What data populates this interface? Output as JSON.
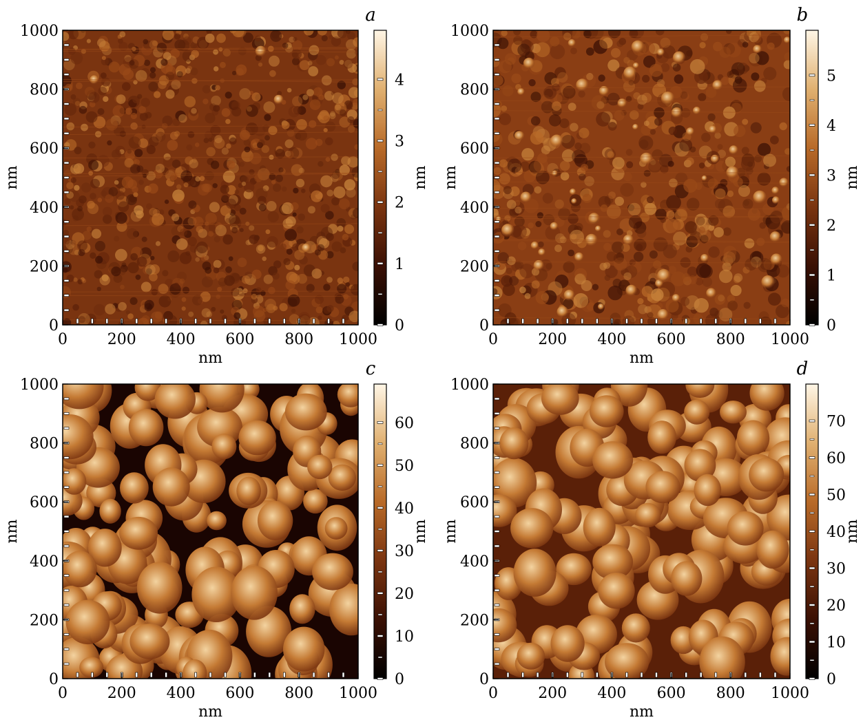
{
  "chart_data": [
    {
      "type": "heatmap",
      "panel_label": "a",
      "xlabel": "nm",
      "ylabel": "nm",
      "xlim": [
        0,
        1000
      ],
      "ylim": [
        0,
        1000
      ],
      "x_ticks": [
        "0",
        "200",
        "400",
        "600",
        "800",
        "1000"
      ],
      "y_ticks": [
        "0",
        "200",
        "400",
        "600",
        "800",
        "1000"
      ],
      "colorbar": {
        "label": "nm",
        "range": [
          0,
          4.8
        ],
        "ticks": [
          "0",
          "1",
          "2",
          "3",
          "4"
        ]
      },
      "colors": [
        "#000000",
        "#3a1004",
        "#7a3410",
        "#b86a28",
        "#e0b070",
        "#fff6e6"
      ]
    },
    {
      "type": "heatmap",
      "panel_label": "b",
      "xlabel": "nm",
      "ylabel": "nm",
      "xlim": [
        0,
        1000
      ],
      "ylim": [
        0,
        1000
      ],
      "x_ticks": [
        "0",
        "200",
        "400",
        "600",
        "800",
        "1000"
      ],
      "y_ticks": [
        "0",
        "200",
        "400",
        "600",
        "800",
        "1000"
      ],
      "colorbar": {
        "label": "nm",
        "range": [
          0,
          5.9
        ],
        "ticks": [
          "0",
          "1",
          "2",
          "3",
          "4",
          "5"
        ]
      },
      "colors": [
        "#000000",
        "#3a1004",
        "#7a3410",
        "#b86a28",
        "#e0b070",
        "#fff6e6"
      ]
    },
    {
      "type": "heatmap",
      "panel_label": "c",
      "xlabel": "nm",
      "ylabel": "nm",
      "xlim": [
        0,
        1000
      ],
      "ylim": [
        0,
        1000
      ],
      "x_ticks": [
        "0",
        "200",
        "400",
        "600",
        "800",
        "1000"
      ],
      "y_ticks": [
        "0",
        "200",
        "400",
        "600",
        "800",
        "1000"
      ],
      "colorbar": {
        "label": "nm",
        "range": [
          0,
          69
        ],
        "ticks": [
          "0",
          "10",
          "20",
          "30",
          "40",
          "50",
          "60"
        ]
      },
      "colors": [
        "#000000",
        "#3a1004",
        "#7a3410",
        "#b86a28",
        "#e0b070",
        "#fff6e6"
      ]
    },
    {
      "type": "heatmap",
      "panel_label": "d",
      "xlabel": "nm",
      "ylabel": "nm",
      "xlim": [
        0,
        1000
      ],
      "ylim": [
        0,
        1000
      ],
      "x_ticks": [
        "0",
        "200",
        "400",
        "600",
        "800",
        "1000"
      ],
      "y_ticks": [
        "0",
        "200",
        "400",
        "600",
        "800",
        "1000"
      ],
      "colorbar": {
        "label": "nm",
        "range": [
          0,
          80
        ],
        "ticks": [
          "0",
          "10",
          "20",
          "30",
          "40",
          "50",
          "60",
          "70"
        ]
      },
      "colors": [
        "#000000",
        "#3a1004",
        "#7a3410",
        "#b86a28",
        "#e0b070",
        "#fff6e6"
      ]
    }
  ]
}
